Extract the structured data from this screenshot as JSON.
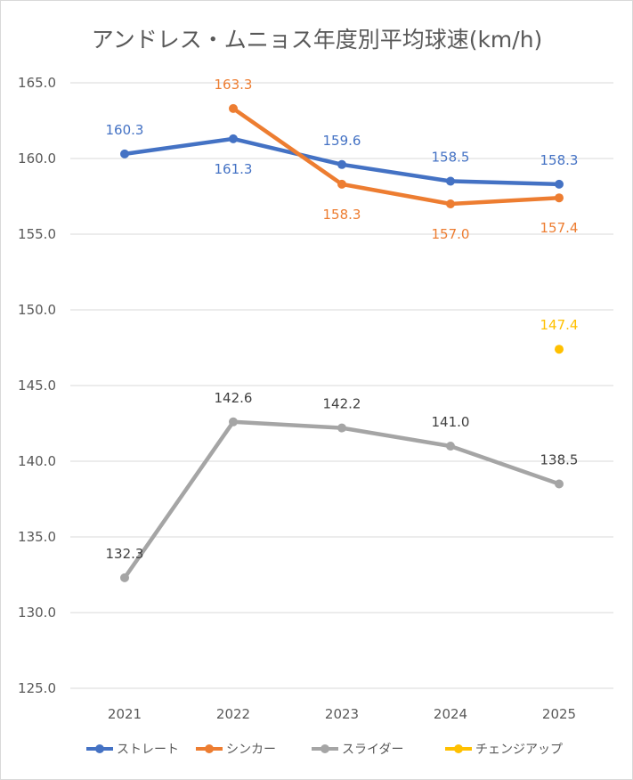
{
  "chart_data": {
    "type": "line",
    "title": "アンドレス・ムニョス年度別平均球速(km/h)",
    "categories": [
      "2021",
      "2022",
      "2023",
      "2024",
      "2025"
    ],
    "ylim": [
      125.0,
      165.0
    ],
    "yticks": [
      "125.0",
      "130.0",
      "135.0",
      "140.0",
      "145.0",
      "150.0",
      "155.0",
      "160.0",
      "165.0"
    ],
    "grid": true,
    "legend_position": "bottom",
    "series": [
      {
        "name": "ストレート",
        "color": "#4472C4",
        "values": [
          160.3,
          161.3,
          159.6,
          158.5,
          158.3
        ],
        "labels": [
          "160.3",
          "161.3",
          "159.6",
          "158.5",
          "158.3"
        ],
        "label_side": [
          "above",
          "below",
          "above",
          "above",
          "above"
        ]
      },
      {
        "name": "シンカー",
        "color": "#ED7D31",
        "values": [
          null,
          163.3,
          158.3,
          157.0,
          157.4
        ],
        "labels": [
          null,
          "163.3",
          "158.3",
          "157.0",
          "157.4"
        ],
        "label_side": [
          null,
          "above",
          "below",
          "below",
          "below"
        ]
      },
      {
        "name": "スライダー",
        "color": "#A5A5A5",
        "label_color": "#404040",
        "values": [
          132.3,
          142.6,
          142.2,
          141.0,
          138.5
        ],
        "labels": [
          "132.3",
          "142.6",
          "142.2",
          "141.0",
          "138.5"
        ],
        "label_side": [
          "above",
          "above",
          "above",
          "above",
          "above"
        ]
      },
      {
        "name": "チェンジアップ",
        "color": "#FFC000",
        "values": [
          null,
          null,
          null,
          null,
          147.4
        ],
        "labels": [
          null,
          null,
          null,
          null,
          "147.4"
        ],
        "label_side": [
          null,
          null,
          null,
          null,
          "above"
        ]
      }
    ]
  }
}
